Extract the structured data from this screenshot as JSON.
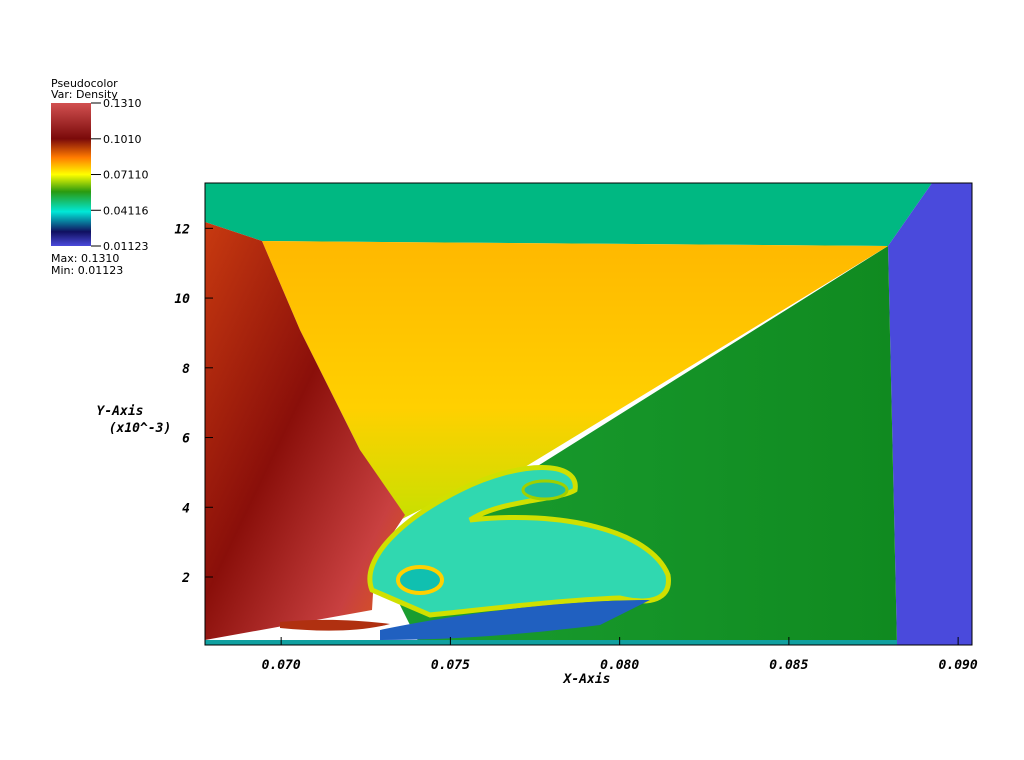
{
  "chart_data": {
    "type": "pseudocolor",
    "legend_title": "Pseudocolor",
    "legend_var": "Var: Density",
    "colorbar": {
      "range": [
        0.01123,
        0.131
      ],
      "ticks": [
        {
          "value": 0.131,
          "label": "0.1310"
        },
        {
          "value": 0.101,
          "label": "0.1010"
        },
        {
          "value": 0.0711,
          "label": "0.07110"
        },
        {
          "value": 0.04116,
          "label": "0.04116"
        },
        {
          "value": 0.01123,
          "label": "0.01123"
        }
      ]
    },
    "max_label": "Max: 0.1310",
    "min_label": "Min: 0.01123",
    "x_label": "X-Axis",
    "y_label": "Y-Axis",
    "y_unit": "(x10^-3)",
    "xlim": [
      0.06775,
      0.09041
    ],
    "ylim": [
      0.05,
      13.3
    ],
    "xticks": [
      {
        "value": 0.07,
        "label": "0.070"
      },
      {
        "value": 0.075,
        "label": "0.075"
      },
      {
        "value": 0.08,
        "label": "0.080"
      },
      {
        "value": 0.085,
        "label": "0.085"
      },
      {
        "value": 0.09,
        "label": "0.090"
      }
    ],
    "yticks": [
      2,
      4,
      6,
      8,
      10,
      12
    ]
  }
}
